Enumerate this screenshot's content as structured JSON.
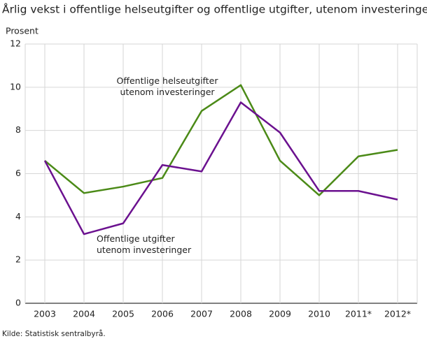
{
  "chart_data": {
    "type": "line",
    "title": "Årlig vekst i offentlige helseutgifter og offentlige utgifter, utenom investeringer",
    "y_label": "Prosent",
    "source": "Kilde: Statistisk sentralbyrå.",
    "categories": [
      "2003",
      "2004",
      "2005",
      "2006",
      "2007",
      "2008",
      "2009",
      "2010",
      "2011*",
      "2012*"
    ],
    "series": [
      {
        "name": "Offentlige helseutgifter utenom investeringer",
        "color": "#4b8a17",
        "values": [
          6.6,
          5.1,
          5.4,
          5.8,
          8.9,
          10.1,
          6.6,
          5.0,
          6.8,
          7.1
        ]
      },
      {
        "name": "Offentlige utgifter utenom investeringer",
        "color": "#6b118f",
        "values": [
          6.6,
          3.2,
          3.7,
          6.4,
          6.1,
          9.3,
          7.9,
          5.2,
          5.2,
          4.8
        ]
      }
    ],
    "ylim": [
      0,
      12
    ],
    "yticks": [
      0,
      2,
      4,
      6,
      8,
      10,
      12
    ],
    "grid": true
  }
}
